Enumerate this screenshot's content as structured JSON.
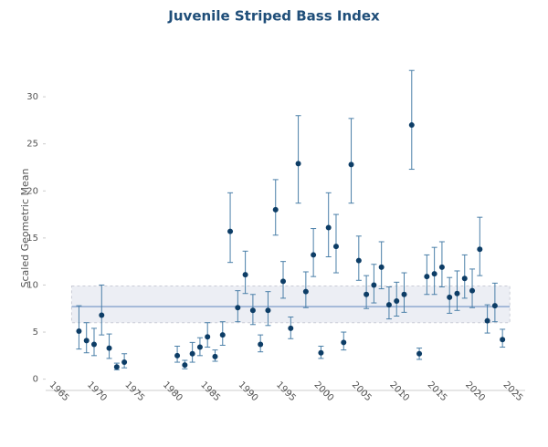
{
  "chart_data": {
    "type": "scatter",
    "title": "Juvenile Striped Bass Index",
    "y_label": "Scaled Geometric Mean",
    "x": [
      1967,
      1968,
      1969,
      1970,
      1971,
      1972,
      1973,
      1980,
      1981,
      1982,
      1983,
      1984,
      1985,
      1986,
      1987,
      1988,
      1989,
      1990,
      1991,
      1992,
      1993,
      1994,
      1995,
      1996,
      1997,
      1998,
      1999,
      2000,
      2001,
      2002,
      2003,
      2004,
      2005,
      2006,
      2007,
      2008,
      2009,
      2010,
      2011,
      2012,
      2013,
      2014,
      2015,
      2016,
      2017,
      2018,
      2019,
      2020,
      2021,
      2022,
      2023
    ],
    "values": [
      5.1,
      4.1,
      3.7,
      6.8,
      3.3,
      1.3,
      1.8,
      2.5,
      1.5,
      2.7,
      3.4,
      4.5,
      2.4,
      4.7,
      15.7,
      7.6,
      11.1,
      7.3,
      3.7,
      7.3,
      18.0,
      10.4,
      5.4,
      22.9,
      9.3,
      13.2,
      2.8,
      16.1,
      14.1,
      3.9,
      22.8,
      12.6,
      9.0,
      10.0,
      11.9,
      7.9,
      8.3,
      9.0,
      27.0,
      2.7,
      10.9,
      11.2,
      11.9,
      8.7,
      9.1,
      10.7,
      9.4,
      13.8,
      6.2,
      7.8,
      4.2
    ],
    "lows": [
      3.2,
      2.8,
      2.5,
      4.7,
      2.2,
      1.0,
      1.2,
      1.8,
      1.1,
      1.8,
      2.5,
      3.4,
      1.9,
      3.6,
      12.4,
      6.1,
      9.1,
      5.8,
      2.9,
      5.7,
      15.3,
      8.6,
      4.3,
      18.7,
      7.6,
      10.9,
      2.2,
      13.0,
      11.3,
      3.1,
      18.7,
      10.5,
      7.5,
      8.1,
      9.6,
      6.4,
      6.7,
      7.1,
      22.3,
      2.1,
      9.0,
      9.0,
      9.8,
      7.0,
      7.3,
      8.6,
      7.6,
      11.0,
      4.9,
      6.1,
      3.4
    ],
    "highs": [
      7.8,
      6.0,
      5.4,
      10.0,
      4.8,
      1.7,
      2.7,
      3.5,
      2.0,
      3.9,
      4.4,
      6.0,
      3.1,
      6.1,
      19.8,
      9.4,
      13.6,
      9.0,
      4.7,
      9.3,
      21.2,
      12.5,
      6.6,
      28.0,
      11.4,
      16.0,
      3.5,
      19.8,
      17.5,
      5.0,
      27.7,
      15.2,
      11.0,
      12.2,
      14.6,
      9.8,
      10.3,
      11.3,
      32.8,
      3.3,
      13.2,
      14.0,
      14.6,
      10.8,
      11.5,
      13.2,
      11.7,
      17.2,
      7.9,
      10.2,
      5.3
    ],
    "mean_line": 7.7,
    "band": [
      6.0,
      9.9
    ],
    "color": "#0d3d66",
    "error_color": "#4a7fa8",
    "xlim": [
      1962.6,
      2026
    ],
    "ylim": [
      -1.2,
      33.5
    ],
    "xticks": [
      1965,
      1970,
      1975,
      1980,
      1985,
      1990,
      1995,
      2000,
      2005,
      2010,
      2015,
      2020,
      2025
    ],
    "yticks": [
      0,
      5,
      10,
      15,
      20,
      25,
      30
    ]
  }
}
